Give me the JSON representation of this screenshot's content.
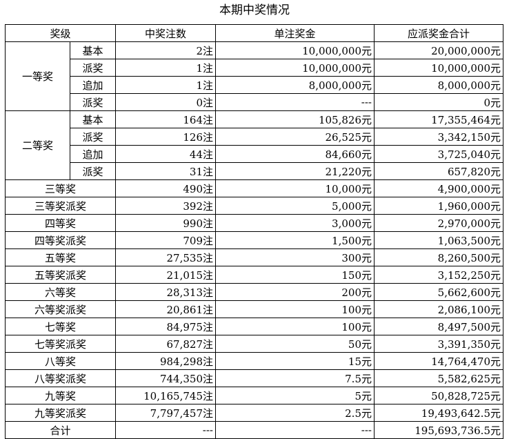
{
  "title": "本期中奖情况",
  "headers": [
    "奖级",
    "中奖注数",
    "单注奖金",
    "应派奖金合计"
  ],
  "groups": [
    {
      "name": "一等奖",
      "rows": [
        {
          "sub": "基本",
          "count": "2注",
          "unit": "10,000,000元",
          "total": "20,000,000元"
        },
        {
          "sub": "派奖",
          "count": "1注",
          "unit": "10,000,000元",
          "total": "10,000,000元"
        },
        {
          "sub": "追加",
          "count": "1注",
          "unit": "8,000,000元",
          "total": "8,000,000元"
        },
        {
          "sub": "派奖",
          "count": "0注",
          "unit": "---",
          "total": "0元"
        }
      ]
    },
    {
      "name": "二等奖",
      "rows": [
        {
          "sub": "基本",
          "count": "164注",
          "unit": "105,826元",
          "total": "17,355,464元"
        },
        {
          "sub": "派奖",
          "count": "126注",
          "unit": "26,525元",
          "total": "3,342,150元"
        },
        {
          "sub": "追加",
          "count": "44注",
          "unit": "84,660元",
          "total": "3,725,040元"
        },
        {
          "sub": "派奖",
          "count": "31注",
          "unit": "21,220元",
          "total": "657,820元"
        }
      ]
    }
  ],
  "rows": [
    {
      "level": "三等奖",
      "count": "490注",
      "unit": "10,000元",
      "total": "4,900,000元"
    },
    {
      "level": "三等奖派奖",
      "count": "392注",
      "unit": "5,000元",
      "total": "1,960,000元"
    },
    {
      "level": "四等奖",
      "count": "990注",
      "unit": "3,000元",
      "total": "2,970,000元"
    },
    {
      "level": "四等奖派奖",
      "count": "709注",
      "unit": "1,500元",
      "total": "1,063,500元"
    },
    {
      "level": "五等奖",
      "count": "27,535注",
      "unit": "300元",
      "total": "8,260,500元"
    },
    {
      "level": "五等奖派奖",
      "count": "21,015注",
      "unit": "150元",
      "total": "3,152,250元"
    },
    {
      "level": "六等奖",
      "count": "28,313注",
      "unit": "200元",
      "total": "5,662,600元"
    },
    {
      "level": "六等奖派奖",
      "count": "20,861注",
      "unit": "100元",
      "total": "2,086,100元"
    },
    {
      "level": "七等奖",
      "count": "84,975注",
      "unit": "100元",
      "total": "8,497,500元"
    },
    {
      "level": "七等奖派奖",
      "count": "67,827注",
      "unit": "50元",
      "total": "3,391,350元"
    },
    {
      "level": "八等奖",
      "count": "984,298注",
      "unit": "15元",
      "total": "14,764,470元"
    },
    {
      "level": "八等奖派奖",
      "count": "744,350注",
      "unit": "7.5元",
      "total": "5,582,625元"
    },
    {
      "level": "九等奖",
      "count": "10,165,745注",
      "unit": "5元",
      "total": "50,828,725元"
    },
    {
      "level": "九等奖派奖",
      "count": "7,797,457注",
      "unit": "2.5元",
      "total": "19,493,642.5元"
    }
  ],
  "summary": {
    "level": "合计",
    "count": "---",
    "unit": "---",
    "total": "195,693,736.5元"
  }
}
